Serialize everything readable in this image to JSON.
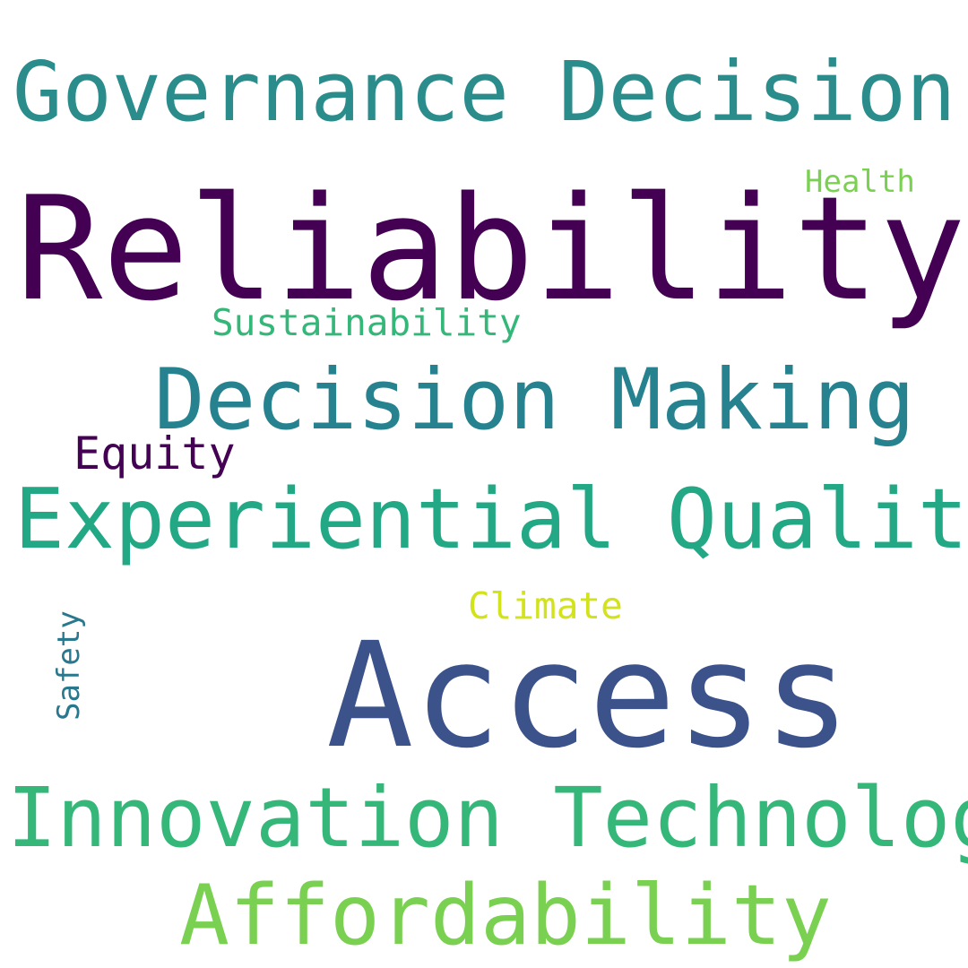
{
  "words": [
    {
      "id": "governance",
      "text": "Governance Decision",
      "color": "#2b8c8c"
    },
    {
      "id": "reliability",
      "text": "Reliability",
      "color": "#440154"
    },
    {
      "id": "health",
      "text": "Health",
      "color": "#7ad151"
    },
    {
      "id": "sustain",
      "text": "Sustainability",
      "color": "#35b779"
    },
    {
      "id": "decision",
      "text": "Decision Making",
      "color": "#26828e"
    },
    {
      "id": "equity",
      "text": "Equity",
      "color": "#440154"
    },
    {
      "id": "experiential",
      "text": "Experiential Quality",
      "color": "#22a884"
    },
    {
      "id": "climate",
      "text": "Climate",
      "color": "#d2e21b"
    },
    {
      "id": "access",
      "text": "Access",
      "color": "#3b528b"
    },
    {
      "id": "safety",
      "text": "Safety",
      "color": "#2a788e"
    },
    {
      "id": "innovation",
      "text": "Innovation Technology",
      "color": "#35b779"
    },
    {
      "id": "afford",
      "text": "Affordability",
      "color": "#7ad151"
    }
  ]
}
